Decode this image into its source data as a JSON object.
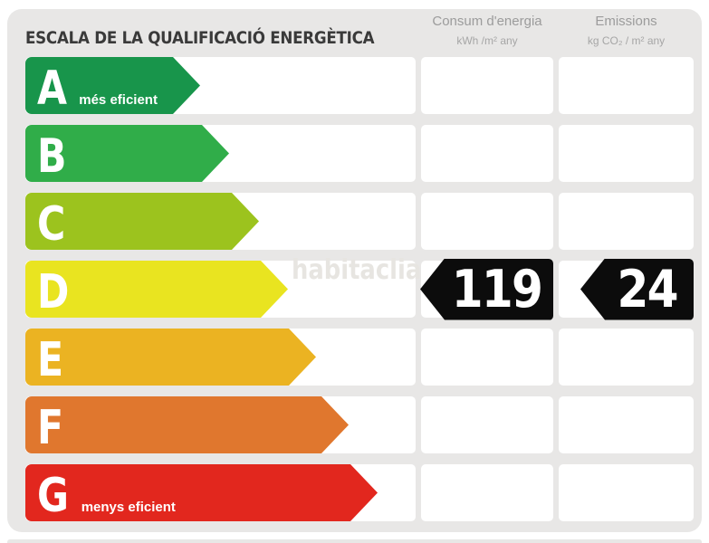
{
  "title": "ESCALA DE LA QUALIFICACIÓ ENERGÈTICA",
  "columns": {
    "consum": {
      "title": "Consum d'energia",
      "unit": "kWh /m² any"
    },
    "emissions": {
      "title": "Emissions",
      "unit": "kg CO₂ / m² any"
    }
  },
  "watermark": "habitaclia",
  "rating": {
    "grade": "D",
    "consum_value": "119",
    "emissions_value": "24"
  },
  "scale": {
    "rows": [
      {
        "letter": "A",
        "note": "més eficient",
        "color": "#18954B",
        "arrow_width": 193,
        "consum": "",
        "emissions": ""
      },
      {
        "letter": "B",
        "note": "",
        "color": "#30AD49",
        "arrow_width": 225,
        "consum": "",
        "emissions": ""
      },
      {
        "letter": "C",
        "note": "",
        "color": "#9CC31E",
        "arrow_width": 258,
        "consum": "",
        "emissions": ""
      },
      {
        "letter": "D",
        "note": "",
        "color": "#E9E420",
        "arrow_width": 290,
        "consum": "119",
        "emissions": "24"
      },
      {
        "letter": "E",
        "note": "",
        "color": "#EBB322",
        "arrow_width": 321,
        "consum": "",
        "emissions": ""
      },
      {
        "letter": "F",
        "note": "",
        "color": "#E0772E",
        "arrow_width": 357,
        "consum": "",
        "emissions": ""
      },
      {
        "letter": "G",
        "note": "menys eficient",
        "color": "#E2271E",
        "arrow_width": 389,
        "consum": "",
        "emissions": ""
      }
    ]
  },
  "colors": {
    "panel_bg": "#E8E7E6",
    "value_box": "#0C0C0C",
    "cell_bg": "#FFFFFF"
  },
  "chart_data": {
    "type": "bar",
    "title": "ESCALA DE LA QUALIFICACIÓ ENERGÈTICA",
    "categories": [
      "A",
      "B",
      "C",
      "D",
      "E",
      "F",
      "G"
    ],
    "values": [
      193,
      225,
      258,
      290,
      321,
      357,
      389
    ],
    "series_note": "values are relative arrow lengths in px; scale bands A (més eficient) to G (menys eficient)",
    "bar_colors": [
      "#18954B",
      "#30AD49",
      "#9CC31E",
      "#E9E420",
      "#EBB322",
      "#E0772E",
      "#E2271E"
    ],
    "annotations": [
      {
        "category": "D",
        "consum_kwh_m2_any": 119,
        "emissions_kg_co2_m2_any": 24
      }
    ],
    "xlabel": "",
    "ylabel": "",
    "legend": [
      "Consum d'energia kWh /m² any",
      "Emissions kg CO₂ / m² any"
    ],
    "grid": false,
    "legend_position": "top"
  }
}
